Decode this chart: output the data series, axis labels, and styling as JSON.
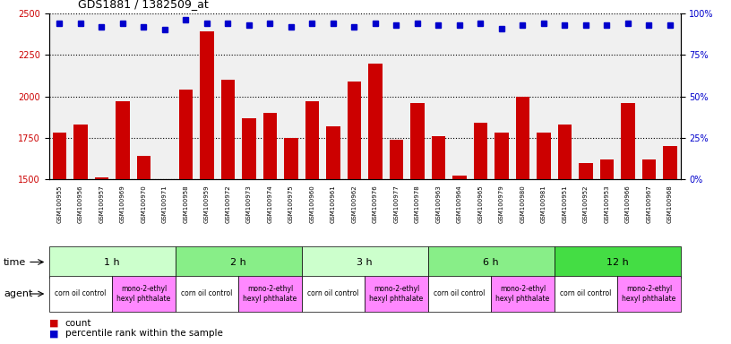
{
  "title": "GDS1881 / 1382509_at",
  "samples": [
    "GSM100955",
    "GSM100956",
    "GSM100957",
    "GSM100969",
    "GSM100970",
    "GSM100971",
    "GSM100958",
    "GSM100959",
    "GSM100972",
    "GSM100973",
    "GSM100974",
    "GSM100975",
    "GSM100960",
    "GSM100961",
    "GSM100962",
    "GSM100976",
    "GSM100977",
    "GSM100978",
    "GSM100963",
    "GSM100964",
    "GSM100965",
    "GSM100979",
    "GSM100980",
    "GSM100981",
    "GSM100951",
    "GSM100952",
    "GSM100953",
    "GSM100966",
    "GSM100967",
    "GSM100968"
  ],
  "counts": [
    1780,
    1830,
    1510,
    1970,
    1640,
    1500,
    2040,
    2390,
    2100,
    1870,
    1900,
    1750,
    1970,
    1820,
    2090,
    2200,
    1740,
    1960,
    1760,
    1520,
    1840,
    1780,
    2000,
    1780,
    1830,
    1600,
    1620,
    1960,
    1620,
    1700
  ],
  "percentiles": [
    94,
    94,
    92,
    94,
    92,
    90,
    96,
    94,
    94,
    93,
    94,
    92,
    94,
    94,
    92,
    94,
    93,
    94,
    93,
    93,
    94,
    91,
    93,
    94,
    93,
    93,
    93,
    94,
    93,
    93
  ],
  "ylim_left": [
    1500,
    2500
  ],
  "ylim_right": [
    0,
    100
  ],
  "yticks_left": [
    1500,
    1750,
    2000,
    2250,
    2500
  ],
  "yticks_right": [
    0,
    25,
    50,
    75,
    100
  ],
  "bar_color": "#cc0000",
  "marker_color": "#0000cc",
  "background_color": "#ffffff",
  "plot_bg_color": "#f0f0f0",
  "time_groups": [
    {
      "label": "1 h",
      "start": 0,
      "end": 6,
      "color": "#ccffcc"
    },
    {
      "label": "2 h",
      "start": 6,
      "end": 12,
      "color": "#88ee88"
    },
    {
      "label": "3 h",
      "start": 12,
      "end": 18,
      "color": "#ccffcc"
    },
    {
      "label": "6 h",
      "start": 18,
      "end": 24,
      "color": "#88ee88"
    },
    {
      "label": "12 h",
      "start": 24,
      "end": 30,
      "color": "#44dd44"
    }
  ],
  "agent_groups": [
    {
      "label": "corn oil control",
      "start": 0,
      "end": 3,
      "color": "#ffffff"
    },
    {
      "label": "mono-2-ethyl\nhexyl phthalate",
      "start": 3,
      "end": 6,
      "color": "#ff88ff"
    },
    {
      "label": "corn oil control",
      "start": 6,
      "end": 9,
      "color": "#ffffff"
    },
    {
      "label": "mono-2-ethyl\nhexyl phthalate",
      "start": 9,
      "end": 12,
      "color": "#ff88ff"
    },
    {
      "label": "corn oil control",
      "start": 12,
      "end": 15,
      "color": "#ffffff"
    },
    {
      "label": "mono-2-ethyl\nhexyl phthalate",
      "start": 15,
      "end": 18,
      "color": "#ff88ff"
    },
    {
      "label": "corn oil control",
      "start": 18,
      "end": 21,
      "color": "#ffffff"
    },
    {
      "label": "mono-2-ethyl\nhexyl phthalate",
      "start": 21,
      "end": 24,
      "color": "#ff88ff"
    },
    {
      "label": "corn oil control",
      "start": 24,
      "end": 27,
      "color": "#ffffff"
    },
    {
      "label": "mono-2-ethyl\nhexyl phthalate",
      "start": 27,
      "end": 30,
      "color": "#ff88ff"
    }
  ],
  "legend_count_color": "#cc0000",
  "legend_marker_color": "#0000cc",
  "xlabel_time": "time",
  "xlabel_agent": "agent"
}
